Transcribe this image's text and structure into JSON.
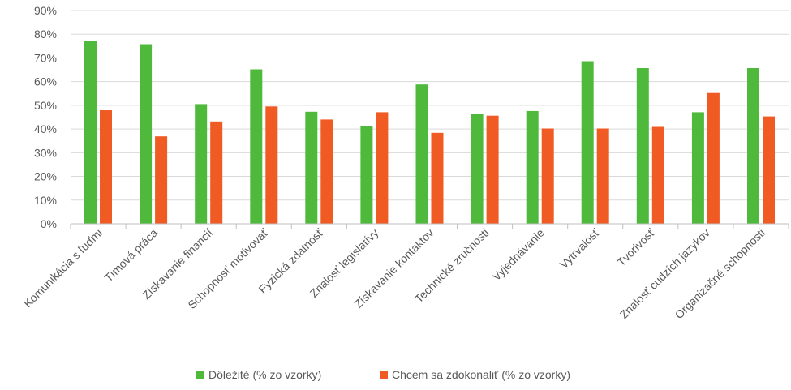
{
  "chart_data": {
    "type": "bar",
    "title": "",
    "xlabel": "",
    "ylabel": "",
    "ylim": [
      0,
      90
    ],
    "yticks": [
      "0%",
      "10%",
      "20%",
      "30%",
      "40%",
      "50%",
      "60%",
      "70%",
      "80%",
      "90%"
    ],
    "grid": true,
    "legend_position": "bottom",
    "categories": [
      "Komunikácia s ľuďmi",
      "Tímová práca",
      "Získavanie financií",
      "Schopnosť motivovať",
      "Fyzická zdatnosť",
      "Znalosť legislatívy",
      "Získavanie kontaktov",
      "Technické zručnosti",
      "Vyjednávanie",
      "Vytrvalosť",
      "Tvorivosť",
      "Znalosť cudzích jazykov",
      "Organizačné schopnosti"
    ],
    "series": [
      {
        "name": "Dôležité (% zo vzorky)",
        "color": "#4eb93b",
        "values": [
          77.3,
          75.8,
          50.5,
          65.2,
          47.3,
          41.4,
          58.8,
          46.3,
          47.6,
          68.6,
          65.7,
          47.1,
          65.7
        ]
      },
      {
        "name": "Chcem sa zdokonaliť (% zo vzorky)",
        "color": "#f05a23",
        "values": [
          47.9,
          36.9,
          43.2,
          49.5,
          44.0,
          47.1,
          38.4,
          45.6,
          40.2,
          40.2,
          40.9,
          55.2,
          45.3
        ]
      }
    ]
  }
}
